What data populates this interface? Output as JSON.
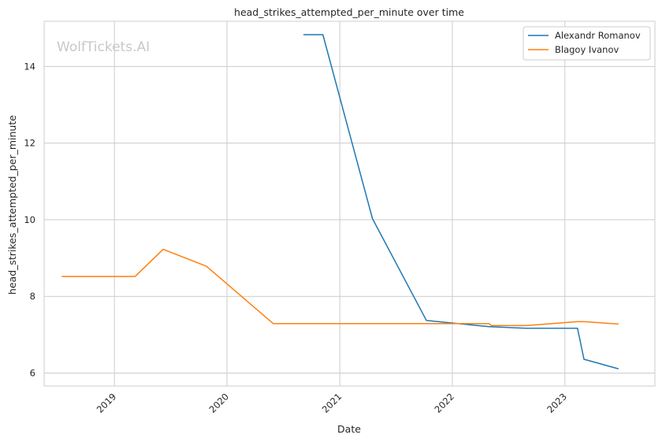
{
  "chart_data": {
    "type": "line",
    "title": "head_strikes_attempted_per_minute over time",
    "xlabel": "Date",
    "ylabel": "head_strikes_attempted_per_minute",
    "watermark": "WolfTickets.AI",
    "xlim": [
      "2018-05-18",
      "2023-10-20"
    ],
    "ylim": [
      5.66,
      15.18
    ],
    "x_ticks": [
      "2019",
      "2020",
      "2021",
      "2022",
      "2023"
    ],
    "y_ticks": [
      6,
      8,
      10,
      12,
      14
    ],
    "grid": true,
    "legend_position": "top-right",
    "series": [
      {
        "name": "Alexandr Romanov",
        "color": "#1f77b4",
        "points": [
          {
            "x": "2020-09-05",
            "y": 14.83
          },
          {
            "x": "2020-11-07",
            "y": 14.83
          },
          {
            "x": "2021-04-17",
            "y": 10.03
          },
          {
            "x": "2021-10-09",
            "y": 7.37
          },
          {
            "x": "2022-04-30",
            "y": 7.21
          },
          {
            "x": "2022-08-27",
            "y": 7.17
          },
          {
            "x": "2023-02-11",
            "y": 7.17
          },
          {
            "x": "2023-03-04",
            "y": 6.36
          },
          {
            "x": "2023-06-24",
            "y": 6.11
          }
        ]
      },
      {
        "name": "Blagoy Ivanov",
        "color": "#ff7f0e",
        "points": [
          {
            "x": "2018-07-14",
            "y": 8.52
          },
          {
            "x": "2019-03-09",
            "y": 8.52
          },
          {
            "x": "2019-06-08",
            "y": 9.23
          },
          {
            "x": "2019-10-26",
            "y": 8.79
          },
          {
            "x": "2020-05-30",
            "y": 7.29
          },
          {
            "x": "2022-04-30",
            "y": 7.29
          },
          {
            "x": "2022-05-07",
            "y": 7.24
          },
          {
            "x": "2022-08-27",
            "y": 7.24
          },
          {
            "x": "2023-02-11",
            "y": 7.34
          },
          {
            "x": "2023-03-04",
            "y": 7.34
          },
          {
            "x": "2023-06-24",
            "y": 7.28
          }
        ]
      }
    ]
  }
}
